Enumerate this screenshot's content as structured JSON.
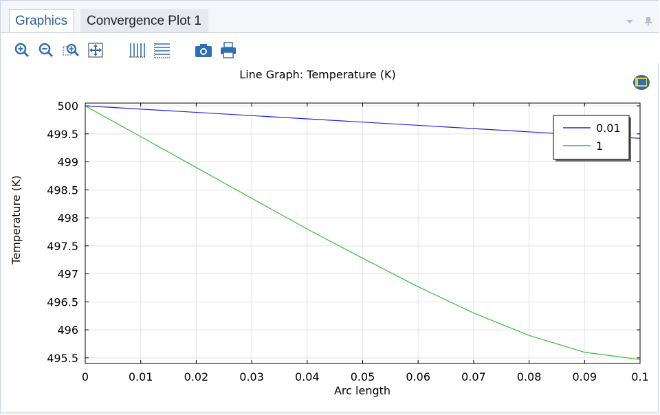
{
  "tabs": [
    {
      "label": "Graphics",
      "active": true
    },
    {
      "label": "Convergence Plot 1",
      "active": false
    }
  ],
  "tab_controls": [
    "dropdown-arrow-icon",
    "pin-icon"
  ],
  "toolbar": {
    "buttons": [
      "zoom-in-icon",
      "zoom-out-icon",
      "zoom-box-icon",
      "zoom-extents-icon",
      "x-grid-icon",
      "y-grid-icon",
      "camera-icon",
      "print-icon"
    ]
  },
  "colors": {
    "series_blue": "#2222dd",
    "series_green": "#33bb33",
    "tab_active_text": "#2c5d97",
    "icon_blue": "#2f6db5"
  },
  "chart_data": {
    "type": "line",
    "title": "Line Graph: Temperature (K)",
    "xlabel": "Arc length",
    "ylabel": "Temperature (K)",
    "xlim": [
      0,
      0.1
    ],
    "ylim": [
      495.4,
      500.05
    ],
    "xticks": [
      "0",
      "0.01",
      "0.02",
      "0.03",
      "0.04",
      "0.05",
      "0.06",
      "0.07",
      "0.08",
      "0.09",
      "0.1"
    ],
    "yticks": [
      "500",
      "499.5",
      "499",
      "498.5",
      "498",
      "497.5",
      "497",
      "496.5",
      "496",
      "495.5"
    ],
    "grid": true,
    "legend_position": "top-right",
    "series": [
      {
        "name": "0.01",
        "color": "#2222dd",
        "x": [
          0,
          0.1
        ],
        "y": [
          500.0,
          499.42
        ]
      },
      {
        "name": "1",
        "color": "#33bb33",
        "x": [
          0,
          0.01,
          0.02,
          0.03,
          0.04,
          0.05,
          0.06,
          0.07,
          0.08,
          0.09,
          0.1
        ],
        "y": [
          500.0,
          499.45,
          498.9,
          498.35,
          497.8,
          497.28,
          496.77,
          496.3,
          495.9,
          495.6,
          495.47
        ]
      }
    ]
  }
}
